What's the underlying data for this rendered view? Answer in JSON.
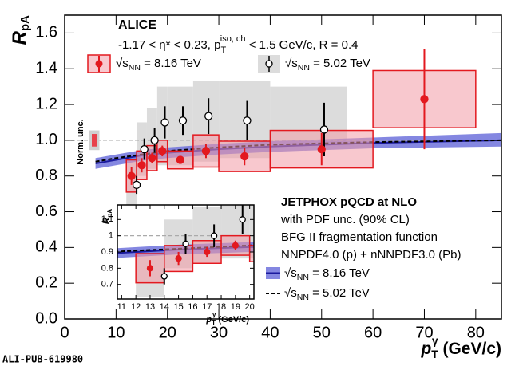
{
  "chart_data": {
    "type": "errorbar",
    "title": "ALICE",
    "kinematics": {
      "a": "-1.17 < η* < 0.23,  p",
      "sub": "T",
      "sup": "iso, ch",
      "b": " < 1.5 GeV/c, R = 0.4"
    },
    "y_label": {
      "base": "R",
      "sub": "pA"
    },
    "x_label": {
      "base": "p",
      "sub": "T",
      "sup": "γ",
      "rest": " (GeV/c)"
    },
    "xlim": [
      0,
      85
    ],
    "ylim": [
      0,
      1.7
    ],
    "xticks": [
      0,
      10,
      20,
      30,
      40,
      50,
      60,
      70,
      80
    ],
    "yticks": [
      {
        "value": 0,
        "label": "0.0"
      },
      0.2,
      0.4,
      0.6,
      0.8,
      {
        "value": 1,
        "label": "1.0"
      },
      1.2,
      1.4,
      1.6
    ],
    "reference_line": 1,
    "series": [
      {
        "name": {
          "base": "√s",
          "sub": "NN",
          "rest": " = 8.16 TeV"
        },
        "color": "#e3191f",
        "box_color": "#f29aa5",
        "x": [
          13,
          15,
          17,
          19,
          22.5,
          27.5,
          35,
          50,
          70
        ],
        "values": [
          0.8,
          0.86,
          0.9,
          0.94,
          0.89,
          0.94,
          0.91,
          0.95,
          1.23
        ],
        "errors": [
          0.05,
          0.04,
          0.03,
          0.03,
          0.02,
          0.04,
          0.05,
          0.09,
          0.28
        ],
        "bins": [
          12,
          14,
          16,
          18,
          20,
          25,
          30,
          40,
          60,
          80
        ],
        "syst": [
          0.09,
          0.08,
          0.07,
          0.06,
          0.05,
          0.09,
          0.085,
          0.105,
          0.16
        ]
      },
      {
        "name": {
          "base": "√s",
          "sub": "NN",
          "rest": " = 5.02 TeV"
        },
        "color": "#000000",
        "band_color": "#dcdcdc",
        "x": [
          14,
          15.5,
          17.5,
          19.5,
          23,
          28,
          35.5,
          50.5
        ],
        "values": [
          0.75,
          0.95,
          1.0,
          1.1,
          1.11,
          1.135,
          1.11,
          1.06
        ],
        "errors": [
          0.05,
          0.06,
          0.07,
          0.09,
          0.08,
          0.1,
          0.11,
          0.15
        ],
        "syst_bins": [
          12,
          14,
          16,
          18,
          20,
          25,
          30,
          40,
          55
        ],
        "syst_low": [
          0.62,
          0.8,
          0.84,
          0.86,
          0.86,
          0.88,
          0.9,
          0.98
        ],
        "syst_high": [
          0.92,
          1.1,
          1.18,
          1.3,
          1.3,
          1.33,
          1.33,
          1.3
        ]
      }
    ],
    "theory": {
      "title": "JETPHOX pQCD at NLO",
      "lines": [
        "with PDF unc. (90% CL)",
        "BFG II fragmentation function",
        "NNPDF4.0 (p) + nNNPDF3.0 (Pb)"
      ],
      "series": [
        {
          "name": {
            "base": "√s",
            "sub": "NN",
            "rest": " = 8.16 TeV"
          },
          "color": "#1a1a9e",
          "band_color": "#6f72dc",
          "x": [
            6,
            10,
            15,
            20,
            30,
            40,
            60,
            85
          ],
          "values": [
            0.87,
            0.89,
            0.915,
            0.93,
            0.95,
            0.965,
            0.985,
            1.0
          ],
          "low": [
            0.84,
            0.86,
            0.885,
            0.9,
            0.92,
            0.935,
            0.955,
            0.965
          ],
          "high": [
            0.9,
            0.92,
            0.945,
            0.96,
            0.98,
            0.995,
            1.015,
            1.04
          ]
        },
        {
          "name": {
            "base": "√s",
            "sub": "NN",
            "rest": " = 5.02 TeV"
          },
          "color": "#000000",
          "dash": true,
          "x": [
            6,
            10,
            20,
            30,
            40,
            60,
            85
          ],
          "values": [
            0.88,
            0.9,
            0.94,
            0.96,
            0.975,
            0.99,
            1.0
          ]
        }
      ]
    },
    "norm_unc": {
      "label": "Norm. unc.",
      "center": 1,
      "half_widths": [
        0.055,
        0.035
      ],
      "colors": [
        "#d0d0d0",
        "#e8404a"
      ]
    },
    "inset": {
      "y_label": {
        "base": "R",
        "sub": "pA"
      },
      "x_label": {
        "base": "p",
        "sub": "T",
        "sup": "γ",
        "rest": " (GeV/c)"
      },
      "xlim": [
        10.7,
        20.3
      ],
      "ylim": [
        0.61,
        1.19
      ],
      "xticks": [
        11,
        12,
        13,
        14,
        15,
        16,
        17,
        18,
        19,
        20
      ],
      "yticks": [
        0.7,
        0.8,
        0.9,
        1,
        1.1
      ]
    },
    "watermark": "ALI-PUB-619980"
  }
}
